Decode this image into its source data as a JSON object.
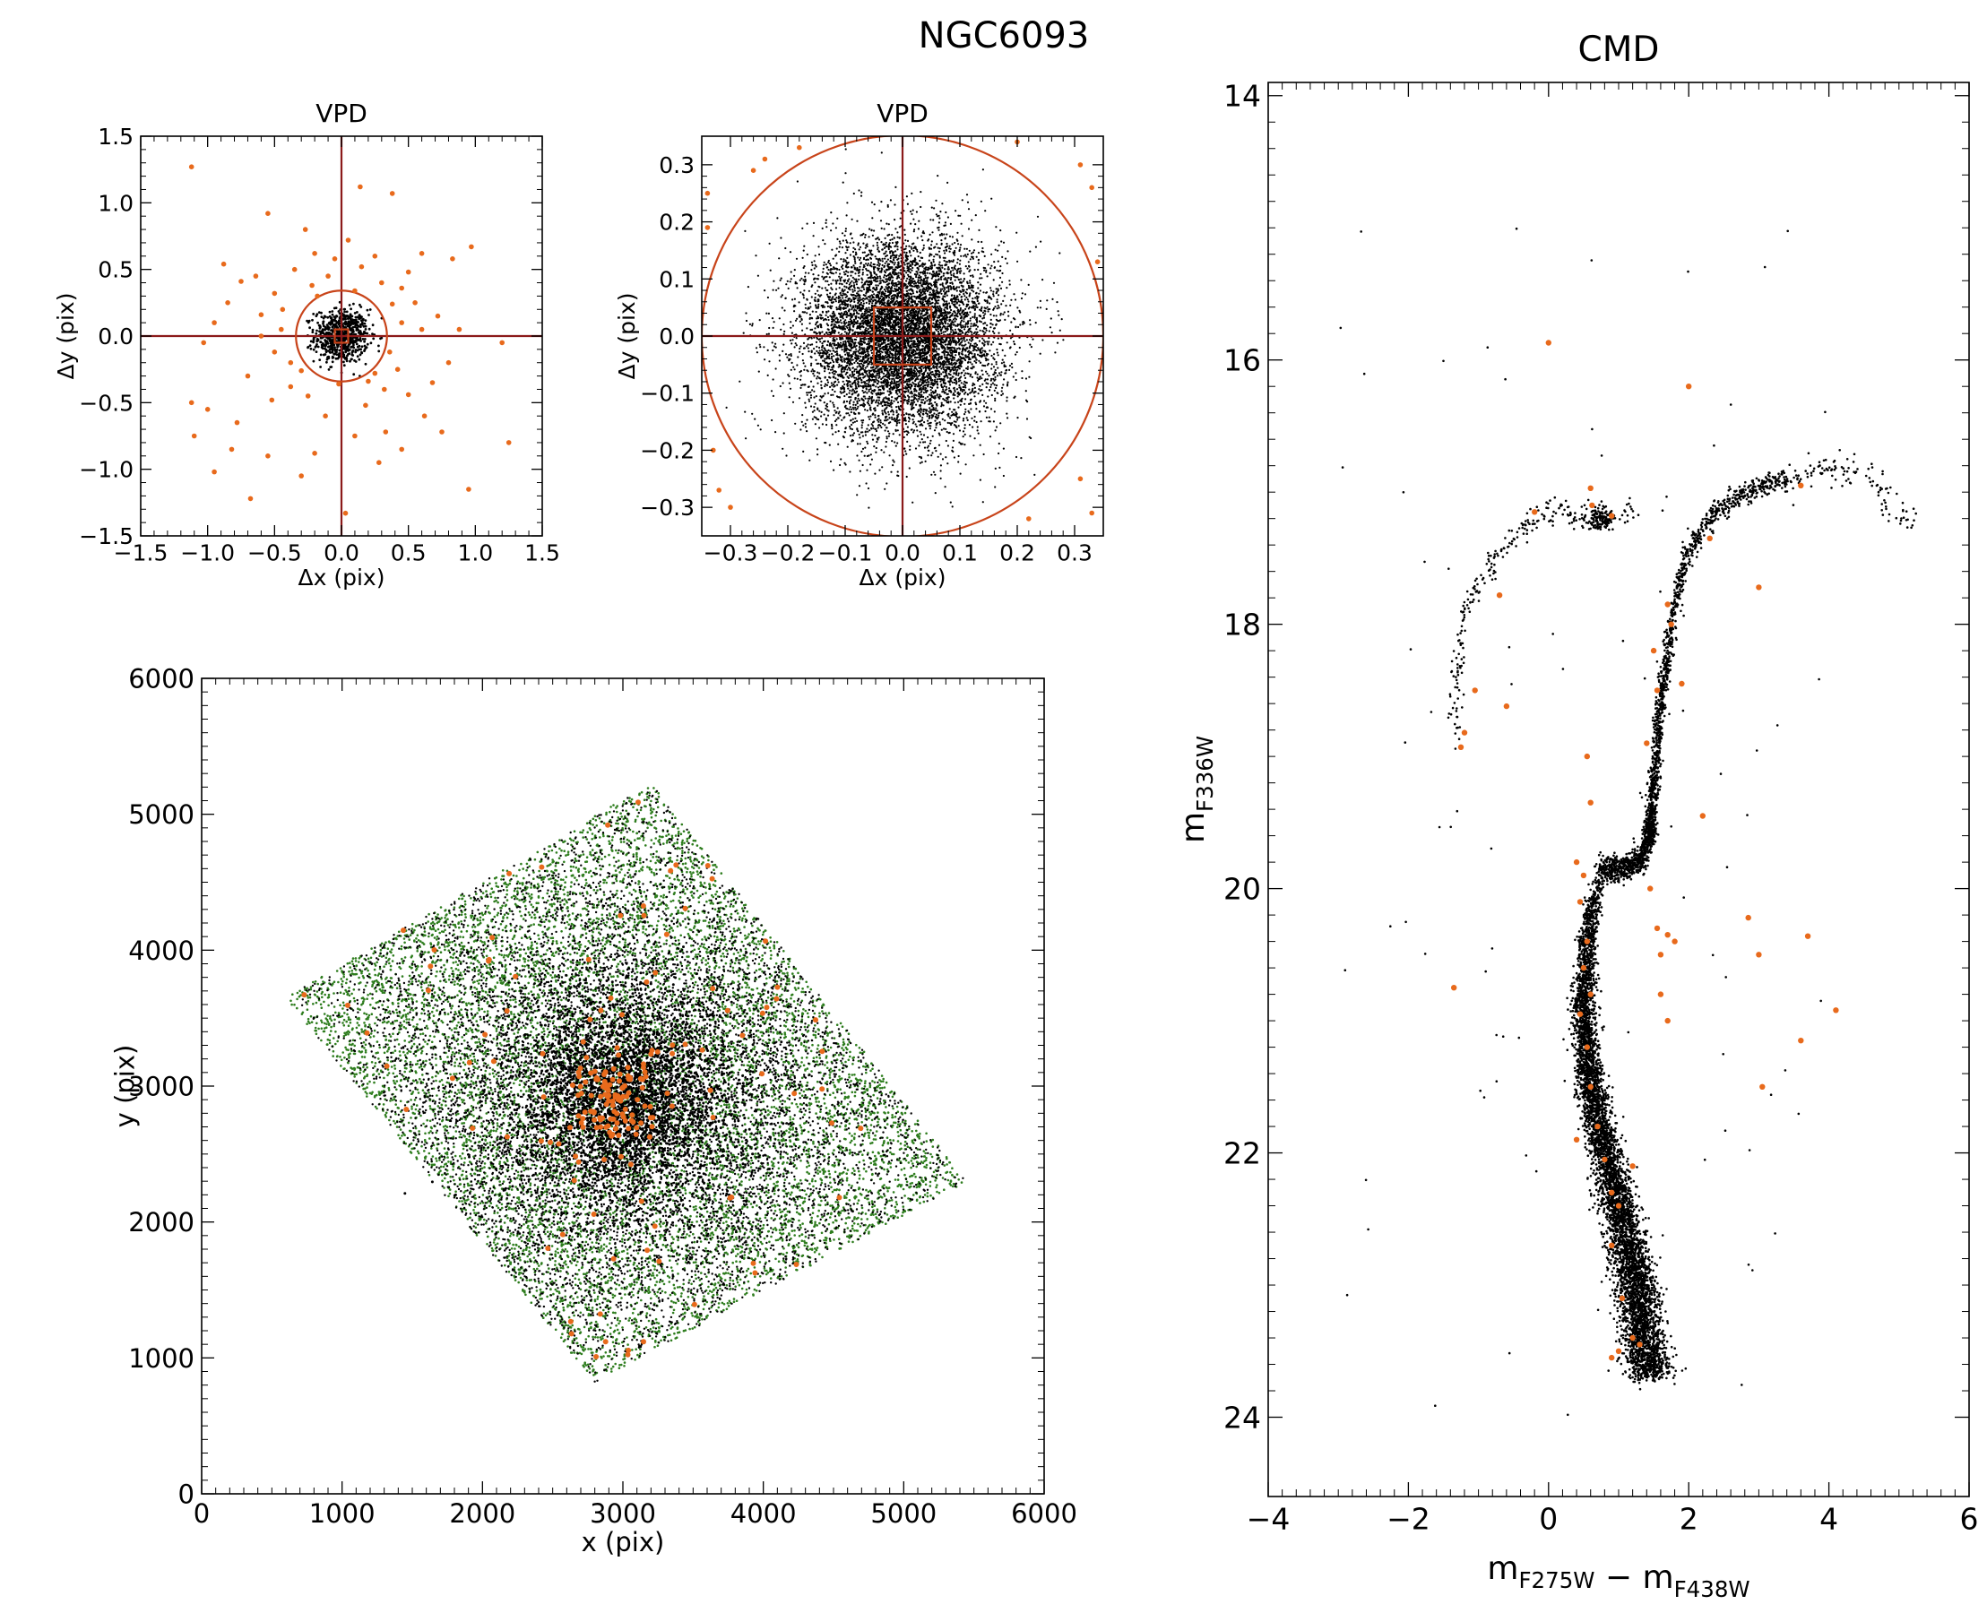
{
  "figure": {
    "title": "NGC6093",
    "colors": {
      "axes": "#000000",
      "accent": "#c8441a",
      "cross": "#8b1a1a",
      "member": "#e86a1c",
      "field": "#000000",
      "ring": "#2e7d1e"
    }
  },
  "chart_data": [
    {
      "id": "vpd-wide",
      "type": "scatter",
      "title": "VPD",
      "xlabel": "Δx (pix)",
      "ylabel": "Δy (pix)",
      "xlim": [
        -1.5,
        1.5
      ],
      "ylim": [
        -1.5,
        1.5
      ],
      "xticks": [
        -1.5,
        -1.0,
        -0.5,
        0.0,
        0.5,
        1.0,
        1.5
      ],
      "yticks": [
        -1.5,
        -1.0,
        -0.5,
        0.0,
        0.5,
        1.0,
        1.5
      ],
      "xtick_labels": [
        "−1.5",
        "−1.0",
        "−0.5",
        "0.0",
        "0.5",
        "1.0",
        "1.5"
      ],
      "ytick_labels": [
        "−1.5",
        "−1.0",
        "−0.5",
        "0.0",
        "0.5",
        "1.0",
        "1.5"
      ],
      "selection_circle_radius": 0.34,
      "selection_box_halfwidth": 0.05,
      "series": [
        {
          "role": "selected",
          "color": "#000000",
          "distribution": "gaussian",
          "center": [
            0,
            0
          ],
          "sigma": 0.1,
          "count": 700
        },
        {
          "role": "rejected",
          "color": "#e86a1c",
          "points": [
            [
              -1.12,
              1.27
            ],
            [
              -0.55,
              0.92
            ],
            [
              -0.27,
              0.8
            ],
            [
              0.14,
              1.12
            ],
            [
              0.38,
              1.07
            ],
            [
              0.6,
              0.62
            ],
            [
              0.97,
              0.67
            ],
            [
              0.83,
              0.58
            ],
            [
              -0.88,
              0.54
            ],
            [
              -0.75,
              0.41
            ],
            [
              -0.64,
              0.45
            ],
            [
              -0.5,
              0.32
            ],
            [
              -0.35,
              0.5
            ],
            [
              -0.2,
              0.62
            ],
            [
              0.25,
              0.6
            ],
            [
              0.5,
              0.48
            ],
            [
              0.45,
              0.36
            ],
            [
              0.3,
              0.4
            ],
            [
              0.15,
              0.52
            ],
            [
              -0.1,
              0.45
            ],
            [
              -0.22,
              0.38
            ],
            [
              -0.44,
              0.2
            ],
            [
              -0.6,
              0.16
            ],
            [
              -0.85,
              0.25
            ],
            [
              -0.95,
              0.1
            ],
            [
              -1.03,
              -0.05
            ],
            [
              -0.6,
              0.0
            ],
            [
              0.45,
              0.1
            ],
            [
              0.6,
              0.05
            ],
            [
              0.72,
              0.15
            ],
            [
              0.88,
              0.05
            ],
            [
              1.2,
              -0.05
            ],
            [
              -1.12,
              -0.5
            ],
            [
              -1.0,
              -0.55
            ],
            [
              -0.78,
              -0.65
            ],
            [
              -0.52,
              -0.48
            ],
            [
              -0.38,
              -0.38
            ],
            [
              -0.25,
              -0.45
            ],
            [
              -0.12,
              -0.6
            ],
            [
              0.18,
              -0.52
            ],
            [
              0.32,
              -0.4
            ],
            [
              0.5,
              -0.44
            ],
            [
              0.62,
              -0.6
            ],
            [
              0.45,
              -0.85
            ],
            [
              0.28,
              -0.95
            ],
            [
              0.1,
              -0.75
            ],
            [
              -0.2,
              -0.88
            ],
            [
              -0.55,
              -0.9
            ],
            [
              -0.68,
              -1.22
            ],
            [
              -0.95,
              -1.02
            ],
            [
              -0.3,
              -1.05
            ],
            [
              0.03,
              -1.33
            ],
            [
              0.33,
              -0.72
            ],
            [
              0.75,
              -0.72
            ],
            [
              0.95,
              -1.15
            ],
            [
              1.25,
              -0.8
            ],
            [
              -0.82,
              -0.85
            ],
            [
              -1.1,
              -0.75
            ],
            [
              0.05,
              0.72
            ],
            [
              -0.05,
              0.58
            ],
            [
              0.38,
              0.24
            ],
            [
              0.55,
              0.25
            ],
            [
              -0.45,
              0.05
            ],
            [
              -0.5,
              -0.12
            ],
            [
              -0.38,
              -0.2
            ],
            [
              0.36,
              -0.12
            ],
            [
              0.42,
              -0.25
            ],
            [
              0.25,
              -0.28
            ],
            [
              -0.18,
              0.3
            ],
            [
              0.1,
              0.34
            ],
            [
              -0.02,
              -0.36
            ],
            [
              0.2,
              -0.34
            ],
            [
              -0.3,
              -0.26
            ],
            [
              0.68,
              -0.35
            ],
            [
              0.8,
              -0.2
            ],
            [
              -0.7,
              -0.3
            ]
          ]
        }
      ]
    },
    {
      "id": "vpd-zoom",
      "type": "scatter",
      "title": "VPD",
      "xlabel": "Δx (pix)",
      "ylabel": "Δy (pix)",
      "xlim": [
        -0.35,
        0.35
      ],
      "ylim": [
        -0.35,
        0.35
      ],
      "xticks": [
        -0.3,
        -0.2,
        -0.1,
        0.0,
        0.1,
        0.2,
        0.3
      ],
      "yticks": [
        -0.3,
        -0.2,
        -0.1,
        0.0,
        0.1,
        0.2,
        0.3
      ],
      "xtick_labels": [
        "−0.3",
        "−0.2",
        "−0.1",
        "0.0",
        "0.1",
        "0.2",
        "0.3"
      ],
      "ytick_labels": [
        "−0.3",
        "−0.2",
        "−0.1",
        "0.0",
        "0.1",
        "0.2",
        "0.3"
      ],
      "selection_circle_radius": 0.35,
      "selection_box_halfwidth": 0.05,
      "series": [
        {
          "role": "selected",
          "color": "#000000",
          "distribution": "gaussian",
          "center": [
            0,
            0
          ],
          "sigma": 0.085,
          "count": 8000
        },
        {
          "role": "rejected",
          "color": "#e86a1c",
          "points": [
            [
              -0.26,
              0.29
            ],
            [
              -0.24,
              0.31
            ],
            [
              -0.34,
              0.25
            ],
            [
              0.31,
              0.3
            ],
            [
              0.33,
              0.26
            ],
            [
              0.34,
              0.13
            ],
            [
              -0.34,
              0.19
            ],
            [
              -0.33,
              -0.2
            ],
            [
              -0.32,
              -0.27
            ],
            [
              -0.3,
              -0.3
            ],
            [
              0.31,
              -0.25
            ],
            [
              0.33,
              -0.31
            ],
            [
              0.2,
              0.34
            ],
            [
              -0.18,
              0.33
            ],
            [
              0.22,
              -0.32
            ]
          ]
        }
      ]
    },
    {
      "id": "field-map",
      "type": "scatter",
      "xlabel": "x (pix)",
      "ylabel": "y (pix)",
      "xlim": [
        0,
        6000
      ],
      "ylim": [
        0,
        6000
      ],
      "xticks": [
        0,
        1000,
        2000,
        3000,
        4000,
        5000,
        6000
      ],
      "yticks": [
        0,
        1000,
        2000,
        3000,
        4000,
        5000,
        6000
      ],
      "xtick_labels": [
        "0",
        "1000",
        "2000",
        "3000",
        "4000",
        "5000",
        "6000"
      ],
      "ytick_labels": [
        "0",
        "1000",
        "2000",
        "3000",
        "4000",
        "5000",
        "6000"
      ],
      "footprint_corners": [
        [
          600,
          3650
        ],
        [
          3200,
          5230
        ],
        [
          5450,
          2300
        ],
        [
          2800,
          820
        ]
      ],
      "cluster_center": [
        3000,
        2900
      ],
      "series": [
        {
          "role": "all-stars",
          "color": "#2e7d1e",
          "distribution": "uniform-in-footprint",
          "count": 9000
        },
        {
          "role": "well-measured",
          "color": "#000000",
          "distribution": "concentrated",
          "center": [
            3000,
            2900
          ],
          "sigma": 900,
          "count": 9000
        },
        {
          "role": "rejected",
          "color": "#e86a1c",
          "distribution": "core-plus-scatter",
          "center": [
            2930,
            2900
          ],
          "sigma": 150,
          "count": 210
        }
      ]
    },
    {
      "id": "cmd",
      "type": "scatter",
      "title": "CMD",
      "xlabel": "m_F275W − m_F438W",
      "ylabel": "m_F336W",
      "xlim": [
        -4.0,
        6.0
      ],
      "ylim": [
        24.6,
        13.9
      ],
      "y_inverted": true,
      "xticks": [
        -4,
        -2,
        0,
        2,
        4,
        6
      ],
      "yticks": [
        14,
        16,
        18,
        20,
        22,
        24
      ],
      "xtick_labels": [
        "−4",
        "−2",
        "0",
        "2",
        "4",
        "6"
      ],
      "ytick_labels": [
        "14",
        "16",
        "18",
        "20",
        "22",
        "24"
      ],
      "sequences": {
        "main_sequence_ridge": [
          [
            0.72,
            19.9
          ],
          [
            0.55,
            20.4
          ],
          [
            0.5,
            21.0
          ],
          [
            0.6,
            21.5
          ],
          [
            0.82,
            22.0
          ],
          [
            1.05,
            22.5
          ],
          [
            1.25,
            23.0
          ],
          [
            1.38,
            23.5
          ],
          [
            1.45,
            23.7
          ]
        ],
        "subgiant_branch": [
          [
            0.72,
            19.85
          ],
          [
            1.0,
            19.85
          ],
          [
            1.3,
            19.8
          ],
          [
            1.45,
            19.6
          ]
        ],
        "red_giant_branch": [
          [
            1.45,
            19.6
          ],
          [
            1.5,
            19.2
          ],
          [
            1.6,
            18.6
          ],
          [
            1.75,
            18.0
          ],
          [
            1.95,
            17.5
          ],
          [
            2.3,
            17.2
          ],
          [
            2.8,
            17.0
          ],
          [
            3.4,
            16.9
          ]
        ],
        "agb_tip": [
          [
            3.4,
            16.9
          ],
          [
            4.0,
            16.8
          ],
          [
            4.6,
            16.9
          ],
          [
            5.2,
            17.3
          ]
        ],
        "horizontal_branch": [
          [
            -1.3,
            18.9
          ],
          [
            -1.3,
            18.2
          ],
          [
            -1.2,
            17.9
          ],
          [
            -1.0,
            17.7
          ],
          [
            -0.6,
            17.4
          ],
          [
            -0.2,
            17.2
          ],
          [
            0.3,
            17.15
          ],
          [
            0.6,
            17.2
          ],
          [
            0.9,
            17.2
          ],
          [
            1.2,
            17.15
          ]
        ],
        "red_clump": [
          0.75,
          17.2
        ]
      },
      "series": [
        {
          "role": "selected",
          "color": "#000000",
          "distribution": "along-sequences",
          "count": 9000
        },
        {
          "role": "rejected",
          "color": "#e86a1c",
          "points": [
            [
              0.0,
              15.87
            ],
            [
              2.0,
              16.2
            ],
            [
              0.6,
              16.97
            ],
            [
              0.62,
              17.1
            ],
            [
              0.9,
              17.18
            ],
            [
              -0.2,
              17.15
            ],
            [
              -0.7,
              17.78
            ],
            [
              -1.05,
              18.5
            ],
            [
              -0.6,
              18.62
            ],
            [
              -1.2,
              18.82
            ],
            [
              -1.25,
              18.93
            ],
            [
              1.7,
              17.85
            ],
            [
              1.75,
              18.0
            ],
            [
              1.5,
              18.2
            ],
            [
              1.55,
              18.5
            ],
            [
              1.9,
              18.45
            ],
            [
              3.0,
              17.72
            ],
            [
              3.6,
              16.95
            ],
            [
              2.3,
              17.35
            ],
            [
              1.4,
              18.9
            ],
            [
              0.55,
              19.0
            ],
            [
              0.6,
              19.35
            ],
            [
              2.2,
              19.45
            ],
            [
              0.4,
              19.8
            ],
            [
              0.5,
              19.9
            ],
            [
              0.45,
              20.1
            ],
            [
              0.55,
              20.4
            ],
            [
              0.5,
              20.6
            ],
            [
              0.6,
              20.8
            ],
            [
              0.45,
              20.95
            ],
            [
              0.55,
              21.2
            ],
            [
              0.6,
              21.5
            ],
            [
              0.7,
              21.8
            ],
            [
              0.8,
              22.05
            ],
            [
              0.9,
              22.3
            ],
            [
              1.0,
              22.4
            ],
            [
              1.2,
              22.1
            ],
            [
              1.45,
              20.0
            ],
            [
              1.55,
              20.3
            ],
            [
              1.6,
              20.5
            ],
            [
              1.7,
              20.35
            ],
            [
              1.8,
              20.4
            ],
            [
              1.6,
              20.8
            ],
            [
              1.7,
              21.0
            ],
            [
              -1.35,
              20.75
            ],
            [
              2.85,
              20.22
            ],
            [
              3.0,
              20.5
            ],
            [
              3.7,
              20.36
            ],
            [
              4.1,
              20.92
            ],
            [
              3.6,
              21.15
            ],
            [
              3.05,
              21.5
            ],
            [
              0.4,
              21.9
            ],
            [
              0.9,
              22.7
            ],
            [
              1.05,
              23.1
            ],
            [
              1.2,
              23.4
            ],
            [
              1.0,
              23.5
            ],
            [
              0.9,
              23.55
            ],
            [
              1.3,
              23.45
            ]
          ]
        }
      ]
    }
  ]
}
